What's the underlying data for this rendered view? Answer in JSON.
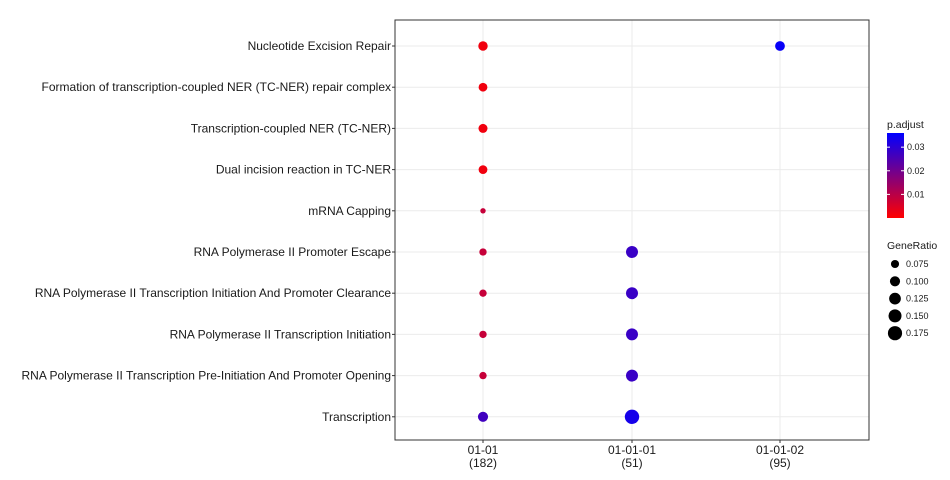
{
  "chart_data": {
    "type": "scatter",
    "title": "",
    "xlabel": "",
    "ylabel": "",
    "grid": true,
    "legend_position": "right",
    "x_categories": [
      {
        "label": "01-01",
        "count": "(182)"
      },
      {
        "label": "01-01-01",
        "count": "(51)"
      },
      {
        "label": "01-01-02",
        "count": "(95)"
      }
    ],
    "y_categories": [
      "Nucleotide Excision Repair",
      "Formation of transcription-coupled NER (TC-NER) repair complex",
      "Transcription-coupled NER (TC-NER)",
      "Dual incision reaction in TC-NER",
      "mRNA Capping",
      "RNA Polymerase II Promoter Escape",
      "RNA Polymerase II Transcription Initiation And Promoter Clearance",
      "RNA Polymerase II Transcription Initiation",
      "RNA Polymerase II Transcription Pre-Initiation And Promoter Opening",
      "Transcription"
    ],
    "points": [
      {
        "x": "01-01",
        "y": "Nucleotide Excision Repair",
        "gene_ratio": 0.09,
        "p_adjust": 0.002
      },
      {
        "x": "01-01-02",
        "y": "Nucleotide Excision Repair",
        "gene_ratio": 0.095,
        "p_adjust": 0.035
      },
      {
        "x": "01-01",
        "y": "Formation of transcription-coupled NER (TC-NER) repair complex",
        "gene_ratio": 0.082,
        "p_adjust": 0.002
      },
      {
        "x": "01-01",
        "y": "Transcription-coupled NER (TC-NER)",
        "gene_ratio": 0.085,
        "p_adjust": 0.002
      },
      {
        "x": "01-01",
        "y": "Dual incision reaction in TC-NER",
        "gene_ratio": 0.082,
        "p_adjust": 0.002
      },
      {
        "x": "01-01",
        "y": "mRNA Capping",
        "gene_ratio": 0.055,
        "p_adjust": 0.008
      },
      {
        "x": "01-01",
        "y": "RNA Polymerase II Promoter Escape",
        "gene_ratio": 0.068,
        "p_adjust": 0.008
      },
      {
        "x": "01-01-01",
        "y": "RNA Polymerase II Promoter Escape",
        "gene_ratio": 0.13,
        "p_adjust": 0.028
      },
      {
        "x": "01-01",
        "y": "RNA Polymerase II Transcription Initiation And Promoter Clearance",
        "gene_ratio": 0.068,
        "p_adjust": 0.008
      },
      {
        "x": "01-01-01",
        "y": "RNA Polymerase II Transcription Initiation And Promoter Clearance",
        "gene_ratio": 0.13,
        "p_adjust": 0.028
      },
      {
        "x": "01-01",
        "y": "RNA Polymerase II Transcription Initiation",
        "gene_ratio": 0.068,
        "p_adjust": 0.008
      },
      {
        "x": "01-01-01",
        "y": "RNA Polymerase II Transcription Initiation",
        "gene_ratio": 0.13,
        "p_adjust": 0.028
      },
      {
        "x": "01-01",
        "y": "RNA Polymerase II Transcription Pre-Initiation And Promoter Opening",
        "gene_ratio": 0.068,
        "p_adjust": 0.008
      },
      {
        "x": "01-01-01",
        "y": "RNA Polymerase II Transcription Pre-Initiation And Promoter Opening",
        "gene_ratio": 0.13,
        "p_adjust": 0.028
      },
      {
        "x": "01-01",
        "y": "Transcription",
        "gene_ratio": 0.1,
        "p_adjust": 0.027
      },
      {
        "x": "01-01-01",
        "y": "Transcription",
        "gene_ratio": 0.18,
        "p_adjust": 0.033
      }
    ],
    "color_legend": {
      "title": "p.adjust",
      "ticks": [
        "0.03",
        "0.02",
        "0.01"
      ],
      "tick_values": [
        0.03,
        0.02,
        0.01
      ],
      "range": [
        0.0,
        0.036
      ],
      "low_color": "#ff0000",
      "high_color": "#0000ff"
    },
    "size_legend": {
      "title": "GeneRatio",
      "labels": [
        "0.075",
        "0.100",
        "0.125",
        "0.150",
        "0.175"
      ],
      "values": [
        0.075,
        0.1,
        0.125,
        0.15,
        0.175
      ]
    }
  }
}
